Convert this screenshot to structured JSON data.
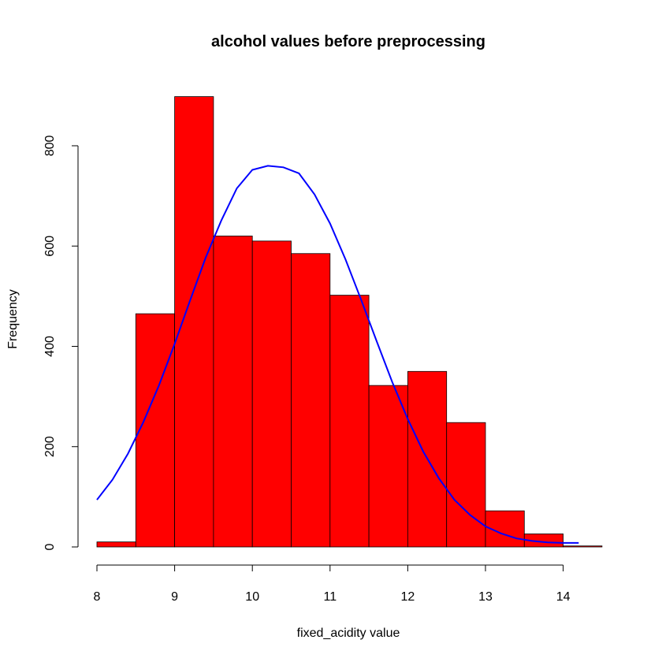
{
  "chart_data": {
    "type": "bar",
    "title": "alcohol values before preprocessing",
    "xlabel": "fixed_acidity value",
    "ylabel": "Frequency",
    "bin_edges": [
      8,
      8.5,
      9,
      9.5,
      10,
      10.5,
      11,
      11.5,
      12,
      12.5,
      13,
      13.5,
      14,
      14.5
    ],
    "values": [
      10,
      465,
      898,
      620,
      610,
      585,
      502,
      322,
      350,
      248,
      72,
      26,
      2
    ],
    "xlim": [
      8,
      14.5
    ],
    "ylim": [
      0,
      900
    ],
    "x_ticks": [
      8,
      9,
      10,
      11,
      12,
      13,
      14
    ],
    "y_ticks": [
      0,
      200,
      400,
      600,
      800
    ],
    "bar_color": "#ff0000",
    "bar_edge_color": "#000000",
    "density_curve": {
      "color": "#0000ff",
      "x": [
        8.0,
        8.2,
        8.4,
        8.6,
        8.8,
        9.0,
        9.2,
        9.4,
        9.6,
        9.8,
        10.0,
        10.2,
        10.4,
        10.6,
        10.8,
        11.0,
        11.2,
        11.4,
        11.6,
        11.8,
        12.0,
        12.2,
        12.4,
        12.6,
        12.8,
        13.0,
        13.2,
        13.4,
        13.6,
        13.8,
        14.0,
        14.2
      ],
      "y": [
        94,
        134,
        186,
        250,
        323,
        405,
        492,
        577,
        651,
        715,
        752,
        760,
        757,
        745,
        703,
        645,
        573,
        493,
        410,
        329,
        255,
        190,
        137,
        94,
        64,
        41,
        27,
        17,
        12,
        9,
        8,
        8
      ]
    },
    "grid": false,
    "legend": "none"
  }
}
